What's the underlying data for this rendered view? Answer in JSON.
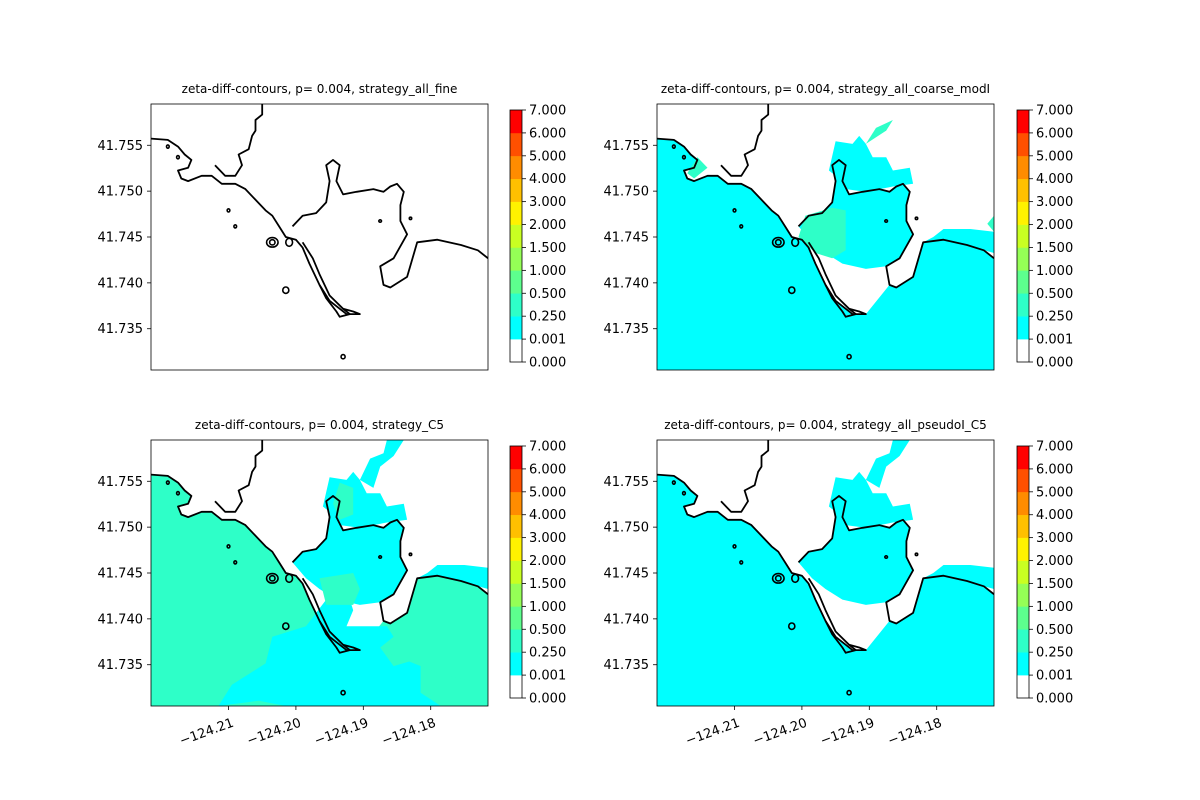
{
  "chart_data": [
    {
      "type": "heatmap",
      "title": "zeta-diff-contours, p= 0.004, strategy_all_fine",
      "xlabel": "",
      "ylabel": "",
      "xlim": [
        -124.2215,
        -124.1715
      ],
      "ylim": [
        41.7305,
        41.7595
      ],
      "xticks": [],
      "yticks": [
        41.735,
        41.74,
        41.745,
        41.75,
        41.755
      ],
      "ytick_labels": [
        "41.735",
        "41.740",
        "41.745",
        "41.750",
        "41.755"
      ],
      "colorbar_levels": [
        0.0,
        0.001,
        0.25,
        0.5,
        1.0,
        1.5,
        2.0,
        3.0,
        4.0,
        5.0,
        6.0,
        7.0
      ],
      "colorbar_labels": [
        "0.000",
        "0.001",
        "0.250",
        "0.500",
        "1.000",
        "1.500",
        "2.000",
        "3.000",
        "4.000",
        "5.000",
        "6.000",
        "7.000"
      ],
      "dominant_level_band": "0.000-0.001",
      "grid": false
    },
    {
      "type": "heatmap",
      "title": "zeta-diff-contours, p= 0.004, strategy_all_coarse_modI",
      "xlabel": "",
      "ylabel": "",
      "xlim": [
        -124.2215,
        -124.1715
      ],
      "ylim": [
        41.7305,
        41.7595
      ],
      "xticks": [],
      "yticks": [
        41.735,
        41.74,
        41.745,
        41.75,
        41.755
      ],
      "ytick_labels": [
        "41.735",
        "41.740",
        "41.745",
        "41.750",
        "41.755"
      ],
      "colorbar_levels": [
        0.0,
        0.001,
        0.25,
        0.5,
        1.0,
        1.5,
        2.0,
        3.0,
        4.0,
        5.0,
        6.0,
        7.0
      ],
      "colorbar_labels": [
        "0.000",
        "0.001",
        "0.250",
        "0.500",
        "1.000",
        "1.500",
        "2.000",
        "3.000",
        "4.000",
        "5.000",
        "6.000",
        "7.000"
      ],
      "dominant_level_band": "0.001-0.250",
      "secondary_level_band": "0.250-0.500",
      "grid": false
    },
    {
      "type": "heatmap",
      "title": "zeta-diff-contours, p= 0.004, strategy_C5",
      "xlabel": "",
      "ylabel": "",
      "xlim": [
        -124.2215,
        -124.1715
      ],
      "ylim": [
        41.7305,
        41.7595
      ],
      "xticks": [
        -124.21,
        -124.2,
        -124.19,
        -124.18
      ],
      "xtick_labels": [
        "−124.21",
        "−124.20",
        "−124.19",
        "−124.18"
      ],
      "yticks": [
        41.735,
        41.74,
        41.745,
        41.75,
        41.755
      ],
      "ytick_labels": [
        "41.735",
        "41.740",
        "41.745",
        "41.750",
        "41.755"
      ],
      "colorbar_levels": [
        0.0,
        0.001,
        0.25,
        0.5,
        1.0,
        1.5,
        2.0,
        3.0,
        4.0,
        5.0,
        6.0,
        7.0
      ],
      "colorbar_labels": [
        "0.000",
        "0.001",
        "0.250",
        "0.500",
        "1.000",
        "1.500",
        "2.000",
        "3.000",
        "4.000",
        "5.000",
        "6.000",
        "7.000"
      ],
      "dominant_level_band": "0.250-0.500",
      "secondary_level_band": "0.001-0.250",
      "grid": false
    },
    {
      "type": "heatmap",
      "title": "zeta-diff-contours, p= 0.004, strategy_all_pseudoI_C5",
      "xlabel": "",
      "ylabel": "",
      "xlim": [
        -124.2215,
        -124.1715
      ],
      "ylim": [
        41.7305,
        41.7595
      ],
      "xticks": [
        -124.21,
        -124.2,
        -124.19,
        -124.18
      ],
      "xtick_labels": [
        "−124.21",
        "−124.20",
        "−124.19",
        "−124.18"
      ],
      "yticks": [
        41.735,
        41.74,
        41.745,
        41.75,
        41.755
      ],
      "ytick_labels": [
        "41.735",
        "41.740",
        "41.745",
        "41.750",
        "41.755"
      ],
      "colorbar_levels": [
        0.0,
        0.001,
        0.25,
        0.5,
        1.0,
        1.5,
        2.0,
        3.0,
        4.0,
        5.0,
        6.0,
        7.0
      ],
      "colorbar_labels": [
        "0.000",
        "0.001",
        "0.250",
        "0.500",
        "1.000",
        "1.500",
        "2.000",
        "3.000",
        "4.000",
        "5.000",
        "6.000",
        "7.000"
      ],
      "dominant_level_band": "0.001-0.250",
      "grid": false
    }
  ],
  "colorbar_colors": [
    "#ffffff",
    "#00ffff",
    "#2effc8",
    "#5dff8e",
    "#95ff56",
    "#c9ff22",
    "#fff200",
    "#ffc000",
    "#ff8c00",
    "#ff5000",
    "#ff0000"
  ],
  "coastline_color": "#000000"
}
